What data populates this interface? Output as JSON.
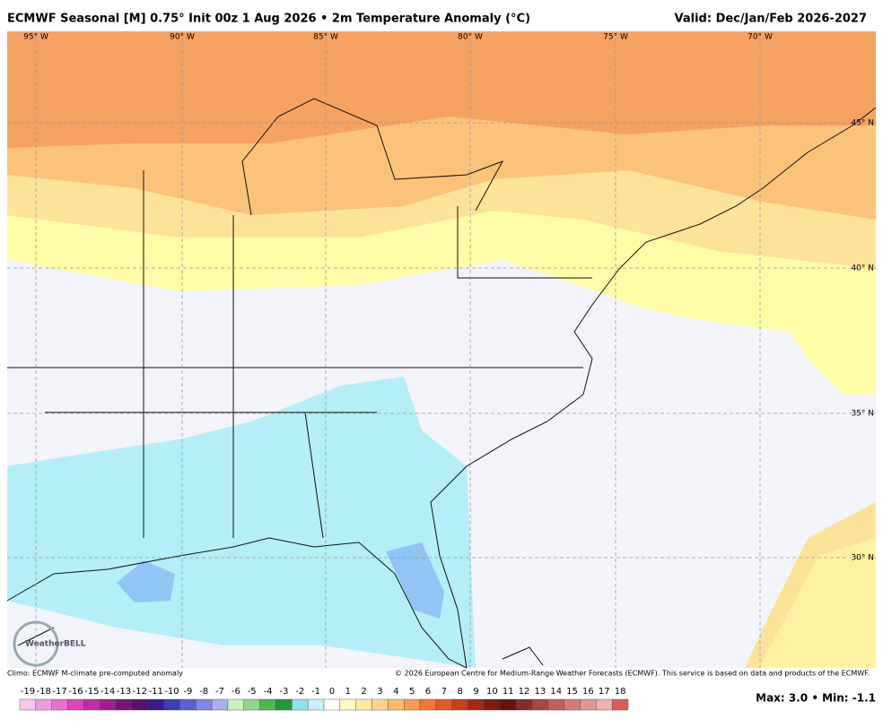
{
  "header": {
    "title": "ECMWF Seasonal [M] 0.75° Init 00z 1 Aug 2026 • 2m Temperature Anomaly (°C)",
    "valid": "Valid: Dec/Jan/Feb 2026-2027"
  },
  "map": {
    "longitudes": [
      "95° W",
      "90° W",
      "85° W",
      "80° W",
      "75° W",
      "70° W"
    ],
    "latitudes": [
      "45° N",
      "40° N",
      "35° N",
      "30° N"
    ],
    "logo": "WeatherBELL"
  },
  "footer": {
    "climo": "Climo: ECMWF M-climate pre-computed anomaly",
    "copyright": "© 2026 European Centre for Medium-Range Weather Forecasts (ECMWF). This service is based on data and products of the ECMWF.",
    "stats": "Max: 3.0 • Min: -1.1"
  },
  "colorbar": {
    "labels": [
      -19,
      -18,
      -17,
      -16,
      -15,
      -14,
      -13,
      -12,
      -11,
      -10,
      -9,
      -8,
      -7,
      -6,
      -5,
      -4,
      -3,
      -2,
      -1,
      0,
      1,
      2,
      3,
      4,
      5,
      6,
      7,
      8,
      9,
      10,
      11,
      12,
      13,
      14,
      15,
      16,
      17,
      18
    ],
    "colors": [
      "#f7c6ef",
      "#f09be0",
      "#e86fd2",
      "#d946c0",
      "#c42aa8",
      "#a01e8f",
      "#7d1478",
      "#5a0e6e",
      "#3a1a8c",
      "#3c3cb4",
      "#5a5fd2",
      "#7f86e6",
      "#a9b1f2",
      "#c7f0c0",
      "#8fd88a",
      "#4cb84a",
      "#1f9a3a",
      "#8fe0f0",
      "#c6f3fa",
      "#ffffff",
      "#fffbc2",
      "#ffe9a0",
      "#fdd48a",
      "#fbba6a",
      "#f89b4a",
      "#f37a35",
      "#e35a25",
      "#c8401c",
      "#a52a14",
      "#821a0e",
      "#6a1010",
      "#8a2a2a",
      "#a84444",
      "#c65c5c",
      "#d87878",
      "#e49494",
      "#efb0b0",
      "#e05858"
    ]
  }
}
